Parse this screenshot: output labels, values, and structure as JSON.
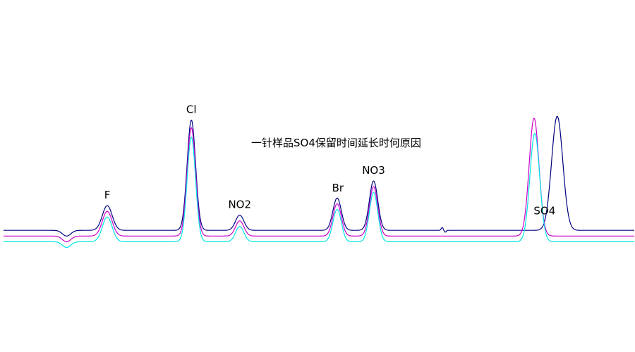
{
  "chart_data": {
    "type": "line",
    "title": "",
    "xlabel": "",
    "ylabel": "",
    "grid": false,
    "annotation": "一针样品SO4保留时间延长时何原因",
    "peak_labels": [
      {
        "name": "F",
        "x": 148
      },
      {
        "name": "Cl",
        "x": 268
      },
      {
        "name": "NO2",
        "x": 337
      },
      {
        "name": "Br",
        "x": 477
      },
      {
        "name": "NO3",
        "x": 528
      },
      {
        "name": "SO4",
        "x": 772
      }
    ],
    "xlim": [
      0,
      900
    ],
    "ylim": [
      0,
      100
    ],
    "series": [
      {
        "color": "#00007f",
        "baseline": 4,
        "peaks": [
          {
            "x": 90,
            "h": -3,
            "w": 6
          },
          {
            "x": 148,
            "h": 13,
            "w": 7
          },
          {
            "x": 268,
            "h": 58,
            "w": 6
          },
          {
            "x": 337,
            "h": 8,
            "w": 6
          },
          {
            "x": 476,
            "h": 17,
            "w": 6
          },
          {
            "x": 528,
            "h": 26,
            "w": 6
          },
          {
            "x": 626,
            "h": 1.5,
            "w": 1.5
          },
          {
            "x": 630,
            "h": -1,
            "w": 1.5
          },
          {
            "x": 790,
            "h": 60,
            "w": 8
          }
        ]
      },
      {
        "color": "#cc00cc",
        "baseline": 1,
        "peaks": [
          {
            "x": 90,
            "h": -3,
            "w": 6
          },
          {
            "x": 148,
            "h": 13,
            "w": 7
          },
          {
            "x": 268,
            "h": 57,
            "w": 6
          },
          {
            "x": 337,
            "h": 8,
            "w": 6
          },
          {
            "x": 476,
            "h": 17,
            "w": 6
          },
          {
            "x": 528,
            "h": 26,
            "w": 6
          },
          {
            "x": 757,
            "h": 62,
            "w": 7
          }
        ]
      },
      {
        "color": "#00e5e5",
        "baseline": -2,
        "peaks": [
          {
            "x": 90,
            "h": -3,
            "w": 6
          },
          {
            "x": 148,
            "h": 13,
            "w": 7
          },
          {
            "x": 268,
            "h": 55,
            "w": 6
          },
          {
            "x": 337,
            "h": 8,
            "w": 6
          },
          {
            "x": 476,
            "h": 17,
            "w": 6
          },
          {
            "x": 528,
            "h": 26,
            "w": 6
          },
          {
            "x": 758,
            "h": 57,
            "w": 7
          }
        ]
      }
    ]
  }
}
